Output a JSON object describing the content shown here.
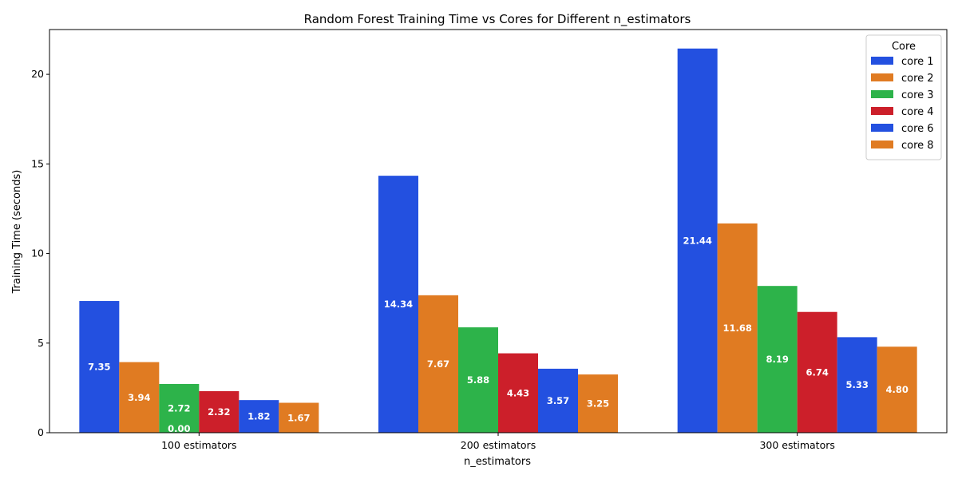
{
  "chart_data": {
    "type": "bar",
    "title": "Random Forest Training Time vs Cores for Different n_estimators",
    "xlabel": "n_estimators",
    "ylabel": "Training Time (seconds)",
    "categories": [
      "100 estimators",
      "200 estimators",
      "300 estimators"
    ],
    "ylim": [
      0,
      22.5
    ],
    "yticks": [
      0,
      5,
      10,
      15,
      20
    ],
    "grid": false,
    "legend": {
      "title": "Core",
      "placement": "top-right"
    },
    "series": [
      {
        "name": "core 1",
        "color": "#2350e0",
        "values": [
          7.35,
          14.34,
          21.44
        ],
        "labels": [
          "7.35",
          "14.34",
          "21.44"
        ]
      },
      {
        "name": "core 2",
        "color": "#e07b22",
        "values": [
          3.94,
          7.67,
          11.68
        ],
        "labels": [
          "3.94",
          "7.67",
          "11.68"
        ]
      },
      {
        "name": "core 3",
        "color": "#2db34a",
        "values": [
          2.72,
          5.88,
          8.19
        ],
        "labels": [
          "2.72",
          "5.88",
          "8.19"
        ]
      },
      {
        "name": "core 4",
        "color": "#cc1f2a",
        "values": [
          2.32,
          4.43,
          6.74
        ],
        "labels": [
          "2.32",
          "4.43",
          "6.74"
        ]
      },
      {
        "name": "core 6",
        "color": "#2350e0",
        "values": [
          1.82,
          3.57,
          5.33
        ],
        "labels": [
          "1.82",
          "3.57",
          "5.33"
        ]
      },
      {
        "name": "core 8",
        "color": "#e07b22",
        "values": [
          1.67,
          3.25,
          4.8
        ],
        "labels": [
          "1.67",
          "3.25",
          "4.80"
        ]
      }
    ],
    "annotations": [
      {
        "text": "0.00",
        "category": 0,
        "value": 0,
        "color": "#ffffff"
      }
    ]
  }
}
